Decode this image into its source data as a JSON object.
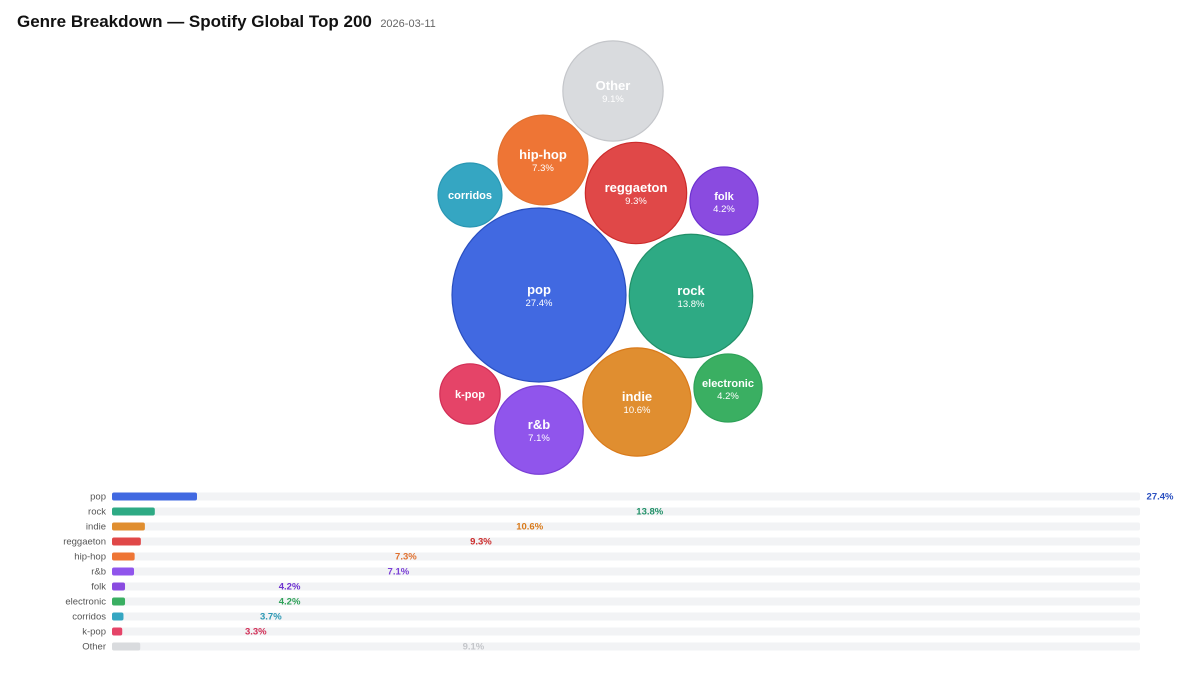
{
  "header": {
    "title": "Genre Breakdown — Spotify Global Top 200",
    "date": "2026-03-11"
  },
  "chart_data": {
    "type": "bubble",
    "max_value": 27.4,
    "categories": [
      "pop",
      "rock",
      "indie",
      "reggaeton",
      "hip-hop",
      "r&b",
      "folk",
      "electronic",
      "corridos",
      "k-pop",
      "Other"
    ],
    "values": [
      27.4,
      13.8,
      10.6,
      9.3,
      7.3,
      7.1,
      4.2,
      4.2,
      3.7,
      3.3,
      9.1
    ],
    "value_labels": [
      "27.4%",
      "13.8%",
      "10.6%",
      "9.3%",
      "7.3%",
      "7.1%",
      "4.2%",
      "4.2%",
      "3.7%",
      "3.3%",
      "9.1%"
    ],
    "show_pct_in_bubble": [
      true,
      true,
      true,
      true,
      true,
      true,
      true,
      true,
      false,
      false,
      true
    ],
    "colors": [
      "#4169e1",
      "#2eaa84",
      "#e08e30",
      "#e04848",
      "#ee7535",
      "#9055ec",
      "#8a4be0",
      "#3aaf62",
      "#35a6c2",
      "#e54468",
      "#d9dbde"
    ],
    "value_colors": [
      "#2a4fc0",
      "#219068",
      "#d97a1a",
      "#cc2b2b",
      "#e0702e",
      "#7a3fd6",
      "#6d32d0",
      "#2ea158",
      "#2a97b3",
      "#d12d55",
      "#c4c6ca"
    ],
    "bubble_label_colors": [
      "#ffffff",
      "#ffffff",
      "#ffffff",
      "#ffffff",
      "#ffffff",
      "#ffffff",
      "#ffffff",
      "#ffffff",
      "#ffffff",
      "#ffffff",
      "#f5f5f6"
    ]
  }
}
